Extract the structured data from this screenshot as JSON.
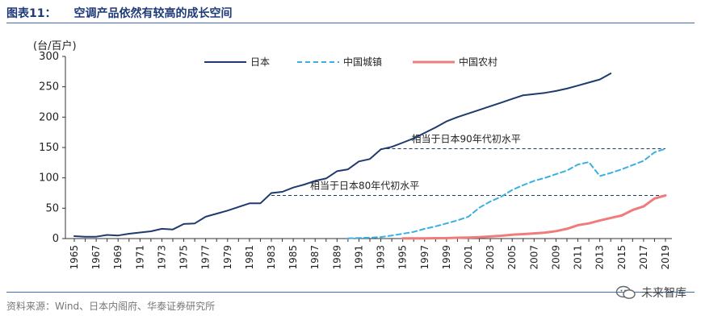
{
  "header": {
    "figure_tag": "图表11：",
    "title": "空调产品依然有较高的成长空间"
  },
  "footer": {
    "source": "资料来源：Wind、日本内阁府、华泰证券研究所",
    "watermark": "未来智库"
  },
  "chart_data": {
    "type": "line",
    "ylabel": "(台/百户)",
    "ylim": [
      0,
      300
    ],
    "yticks": [
      0,
      50,
      100,
      150,
      200,
      250,
      300
    ],
    "xlim": [
      1965,
      2019
    ],
    "xticks": [
      "1965",
      "1967",
      "1969",
      "1971",
      "1973",
      "1975",
      "1977",
      "1979",
      "1981",
      "1983",
      "1985",
      "1987",
      "1989",
      "1991",
      "1993",
      "1995",
      "1997",
      "1999",
      "2001",
      "2003",
      "2005",
      "2007",
      "2009",
      "2011",
      "2013",
      "2015",
      "2017",
      "2019"
    ],
    "series": [
      {
        "name": "日本",
        "color": "#1f3a6e",
        "style": "solid",
        "x": [
          1965,
          1966,
          1967,
          1968,
          1969,
          1970,
          1971,
          1972,
          1973,
          1974,
          1975,
          1976,
          1977,
          1978,
          1979,
          1980,
          1981,
          1982,
          1983,
          1984,
          1985,
          1986,
          1987,
          1988,
          1989,
          1990,
          1991,
          1992,
          1993,
          1994,
          1995,
          1996,
          1997,
          1998,
          1999,
          2000,
          2001,
          2002,
          2003,
          2004,
          2005,
          2006,
          2007,
          2008,
          2009,
          2010,
          2011,
          2012,
          2013,
          2014
        ],
        "values": [
          4,
          3,
          3,
          6,
          5,
          8,
          10,
          12,
          16,
          15,
          24,
          25,
          36,
          41,
          46,
          52,
          58,
          58,
          75,
          77,
          84,
          89,
          95,
          99,
          111,
          114,
          127,
          131,
          147,
          151,
          158,
          165,
          174,
          183,
          193,
          200,
          206,
          212,
          218,
          224,
          230,
          236,
          238,
          240,
          243,
          247,
          252,
          257,
          262,
          272
        ]
      },
      {
        "name": "中国城镇",
        "color": "#3ab0e2",
        "style": "dashed",
        "x": [
          1990,
          1991,
          1992,
          1993,
          1994,
          1995,
          1996,
          1997,
          1998,
          1999,
          2000,
          2001,
          2002,
          2003,
          2004,
          2005,
          2006,
          2007,
          2008,
          2009,
          2010,
          2011,
          2012,
          2013,
          2014,
          2015,
          2016,
          2017,
          2018,
          2019
        ],
        "values": [
          0.3,
          1,
          1.5,
          2.5,
          5,
          8,
          11,
          16,
          20,
          25,
          30,
          36,
          51,
          61,
          69,
          80,
          88,
          95,
          100,
          106,
          112,
          122,
          126,
          103,
          108,
          114,
          121,
          128,
          142,
          148
        ]
      },
      {
        "name": "中国农村",
        "color": "#f07b7b",
        "style": "solid",
        "x": [
          1995,
          1996,
          1997,
          1998,
          1999,
          2000,
          2001,
          2002,
          2003,
          2004,
          2005,
          2006,
          2007,
          2008,
          2009,
          2010,
          2011,
          2012,
          2013,
          2014,
          2015,
          2016,
          2017,
          2018,
          2019
        ],
        "values": [
          0.2,
          0.3,
          0.4,
          0.6,
          0.8,
          1.3,
          1.7,
          2.3,
          3.4,
          4.7,
          6.4,
          7.3,
          8.5,
          9.8,
          12.2,
          16,
          22,
          25,
          29.8,
          34,
          38,
          47,
          53,
          66,
          71
        ]
      }
    ],
    "reference_lines": [
      {
        "label": "相当于日本90年代初水平",
        "value": 148,
        "x_start": 1993,
        "x_end": 2019
      },
      {
        "label": "相当于日本80年代初水平",
        "value": 71,
        "x_start": 1983,
        "x_end": 2019
      }
    ],
    "legend_position": "top"
  }
}
